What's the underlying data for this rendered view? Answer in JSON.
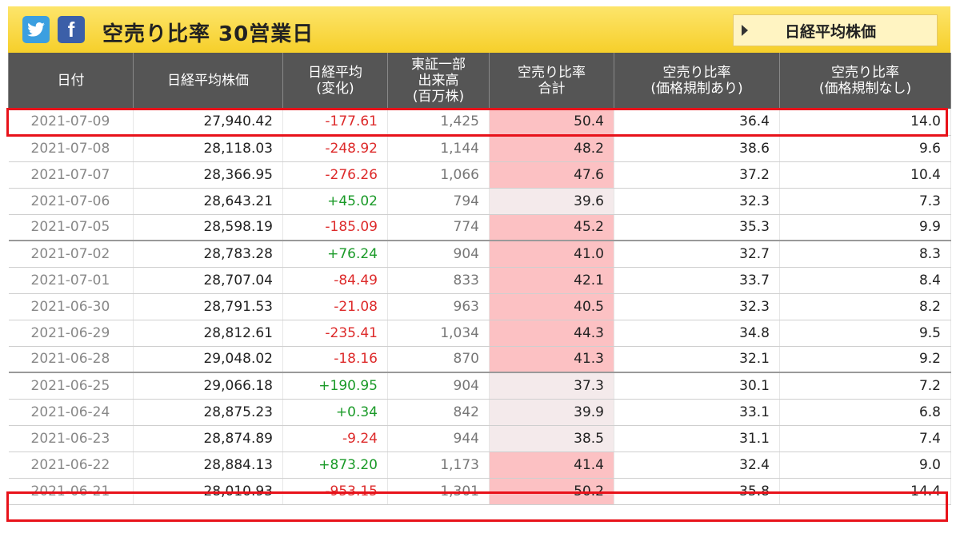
{
  "header": {
    "twitter_icon": "twitter-icon",
    "facebook_icon": "facebook-icon",
    "title": "空売り比率 30営業日",
    "nikkei_button": "日経平均株価",
    "accent": "#f6cf2a"
  },
  "table": {
    "columns": [
      [
        "日付"
      ],
      [
        "日経平均株価"
      ],
      [
        "日経平均",
        "(変化)"
      ],
      [
        "東証一部",
        "出来高",
        "(百万株)"
      ],
      [
        "空売り比率",
        "合計"
      ],
      [
        "空売り比率",
        "(価格規制あり)"
      ],
      [
        "空売り比率",
        "(価格規制なし)"
      ]
    ],
    "rows": [
      {
        "date": "2021-07-09",
        "price": "27,940.42",
        "change": "-177.61",
        "volume": "1,425",
        "total": "50.4",
        "with_reg": "36.4",
        "without_reg": "14.0",
        "dir": "neg",
        "level": "hi",
        "week_start": false
      },
      {
        "date": "2021-07-08",
        "price": "28,118.03",
        "change": "-248.92",
        "volume": "1,144",
        "total": "48.2",
        "with_reg": "38.6",
        "without_reg": "9.6",
        "dir": "neg",
        "level": "hi",
        "week_start": false
      },
      {
        "date": "2021-07-07",
        "price": "28,366.95",
        "change": "-276.26",
        "volume": "1,066",
        "total": "47.6",
        "with_reg": "37.2",
        "without_reg": "10.4",
        "dir": "neg",
        "level": "hi",
        "week_start": false
      },
      {
        "date": "2021-07-06",
        "price": "28,643.21",
        "change": "+45.02",
        "volume": "794",
        "total": "39.6",
        "with_reg": "32.3",
        "without_reg": "7.3",
        "dir": "pos",
        "level": "lo",
        "week_start": false
      },
      {
        "date": "2021-07-05",
        "price": "28,598.19",
        "change": "-185.09",
        "volume": "774",
        "total": "45.2",
        "with_reg": "35.3",
        "without_reg": "9.9",
        "dir": "neg",
        "level": "hi",
        "week_start": false
      },
      {
        "date": "2021-07-02",
        "price": "28,783.28",
        "change": "+76.24",
        "volume": "904",
        "total": "41.0",
        "with_reg": "32.7",
        "without_reg": "8.3",
        "dir": "pos",
        "level": "hi",
        "week_start": true
      },
      {
        "date": "2021-07-01",
        "price": "28,707.04",
        "change": "-84.49",
        "volume": "833",
        "total": "42.1",
        "with_reg": "33.7",
        "without_reg": "8.4",
        "dir": "neg",
        "level": "hi",
        "week_start": false
      },
      {
        "date": "2021-06-30",
        "price": "28,791.53",
        "change": "-21.08",
        "volume": "963",
        "total": "40.5",
        "with_reg": "32.3",
        "without_reg": "8.2",
        "dir": "neg",
        "level": "hi",
        "week_start": false
      },
      {
        "date": "2021-06-29",
        "price": "28,812.61",
        "change": "-235.41",
        "volume": "1,034",
        "total": "44.3",
        "with_reg": "34.8",
        "without_reg": "9.5",
        "dir": "neg",
        "level": "hi",
        "week_start": false
      },
      {
        "date": "2021-06-28",
        "price": "29,048.02",
        "change": "-18.16",
        "volume": "870",
        "total": "41.3",
        "with_reg": "32.1",
        "without_reg": "9.2",
        "dir": "neg",
        "level": "hi",
        "week_start": false
      },
      {
        "date": "2021-06-25",
        "price": "29,066.18",
        "change": "+190.95",
        "volume": "904",
        "total": "37.3",
        "with_reg": "30.1",
        "without_reg": "7.2",
        "dir": "pos",
        "level": "lo",
        "week_start": true
      },
      {
        "date": "2021-06-24",
        "price": "28,875.23",
        "change": "+0.34",
        "volume": "842",
        "total": "39.9",
        "with_reg": "33.1",
        "without_reg": "6.8",
        "dir": "pos",
        "level": "lo",
        "week_start": false
      },
      {
        "date": "2021-06-23",
        "price": "28,874.89",
        "change": "-9.24",
        "volume": "944",
        "total": "38.5",
        "with_reg": "31.1",
        "without_reg": "7.4",
        "dir": "neg",
        "level": "lo",
        "week_start": false
      },
      {
        "date": "2021-06-22",
        "price": "28,884.13",
        "change": "+873.20",
        "volume": "1,173",
        "total": "41.4",
        "with_reg": "32.4",
        "without_reg": "9.0",
        "dir": "pos",
        "level": "hi",
        "week_start": false
      },
      {
        "date": "2021-06-21",
        "price": "28,010.93",
        "change": "-953.15",
        "volume": "1,301",
        "total": "50.2",
        "with_reg": "35.8",
        "without_reg": "14.4",
        "dir": "neg",
        "level": "hi",
        "week_start": false
      }
    ],
    "highlighted_rows": [
      0,
      14
    ]
  }
}
